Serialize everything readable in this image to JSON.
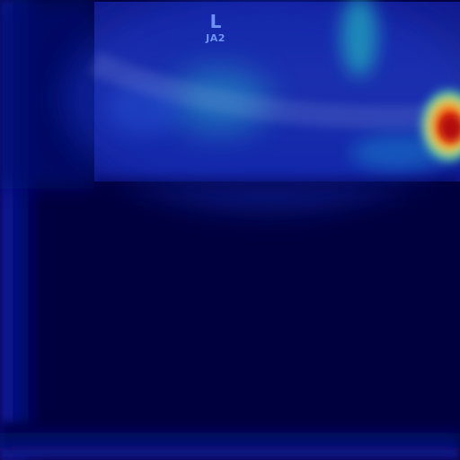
{
  "image": {
    "kind": "heatmap-overlay",
    "colormap": "jet",
    "background_color": "#00003f"
  },
  "marker": {
    "side_letter": "L",
    "code": "JA2"
  },
  "palette": {
    "deep_blue": "#00003f",
    "blue": "#1428a8",
    "cyan": "#20a8c8",
    "yellow": "#f0e040",
    "red": "#d81010"
  }
}
